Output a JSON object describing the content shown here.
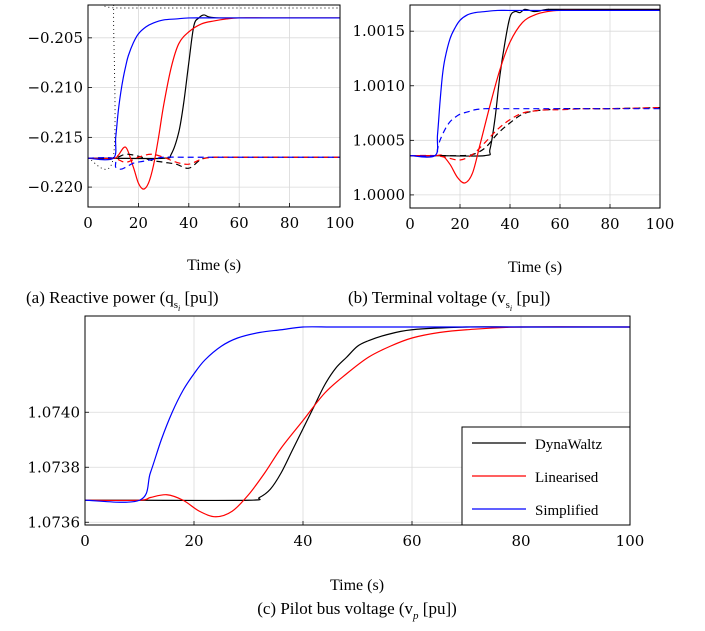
{
  "chart_data": [
    {
      "type": "line",
      "caption": "(a) Reactive power (q",
      "caption_sub": "s",
      "caption_subsub": "i",
      "caption_end": " [pu])",
      "xlabel": "Time (s)",
      "xlim": [
        0,
        100
      ],
      "ylim": [
        -0.222,
        -0.2017
      ],
      "xticks": [
        0,
        20,
        40,
        60,
        80,
        100
      ],
      "yticks": [
        -0.205,
        -0.21,
        -0.215,
        -0.22
      ],
      "ytick_labels": [
        "−0.205",
        "−0.210",
        "−0.215",
        "−0.220"
      ],
      "series": [
        {
          "color": "#000000",
          "dash": "solid",
          "x": [
            0,
            10,
            30,
            33,
            36,
            38,
            40,
            42,
            44,
            46,
            48,
            52,
            60,
            100
          ],
          "values": [
            -0.2171,
            -0.2171,
            -0.2171,
            -0.2167,
            -0.2145,
            -0.2115,
            -0.2075,
            -0.2038,
            -0.203,
            -0.2027,
            -0.2029,
            -0.203,
            -0.203,
            -0.203
          ]
        },
        {
          "color": "#ff0000",
          "dash": "solid",
          "x": [
            0,
            10,
            12,
            15,
            18,
            20,
            22,
            24,
            26,
            28,
            30,
            33,
            36,
            40,
            45,
            50,
            55,
            60,
            70,
            80,
            100
          ],
          "values": [
            -0.2171,
            -0.2171,
            -0.2168,
            -0.216,
            -0.218,
            -0.2196,
            -0.2202,
            -0.2196,
            -0.2178,
            -0.215,
            -0.2118,
            -0.208,
            -0.2056,
            -0.2044,
            -0.2036,
            -0.2033,
            -0.2031,
            -0.203,
            -0.203,
            -0.203,
            -0.203
          ]
        },
        {
          "color": "#0000ff",
          "dash": "solid",
          "x": [
            0,
            10,
            11,
            12,
            13,
            14,
            15,
            16,
            18,
            20,
            23,
            26,
            30,
            35,
            40,
            50,
            60,
            100
          ],
          "values": [
            -0.2171,
            -0.2171,
            -0.215,
            -0.2124,
            -0.2105,
            -0.209,
            -0.2078,
            -0.2068,
            -0.2055,
            -0.2046,
            -0.2039,
            -0.2035,
            -0.2032,
            -0.2031,
            -0.203,
            -0.203,
            -0.203,
            -0.203
          ]
        },
        {
          "color": "#000000",
          "dash": "dotted",
          "x": [
            0,
            10,
            10.2,
            12,
            100
          ],
          "values": [
            -0.2171,
            -0.2171,
            -0.202,
            -0.202,
            -0.202
          ]
        },
        {
          "color": "#000000",
          "dash": "dashed",
          "x": [
            0,
            10,
            15,
            20,
            25,
            30,
            35,
            40,
            45,
            50,
            60,
            100
          ],
          "values": [
            -0.2171,
            -0.2171,
            -0.2167,
            -0.2169,
            -0.2173,
            -0.2175,
            -0.2177,
            -0.2181,
            -0.2172,
            -0.217,
            -0.217,
            -0.217
          ]
        },
        {
          "color": "#ff0000",
          "dash": "dashed",
          "x": [
            0,
            10,
            15,
            20,
            25,
            30,
            35,
            40,
            45,
            50,
            60,
            100
          ],
          "values": [
            -0.2171,
            -0.2171,
            -0.2175,
            -0.217,
            -0.2167,
            -0.217,
            -0.2175,
            -0.2177,
            -0.2172,
            -0.217,
            -0.217,
            -0.217
          ]
        },
        {
          "color": "#0000ff",
          "dash": "dashed",
          "x": [
            0,
            10,
            11,
            13,
            15,
            18,
            22,
            26,
            30,
            40,
            60,
            100
          ],
          "values": [
            -0.2171,
            -0.2171,
            -0.218,
            -0.2182,
            -0.218,
            -0.2176,
            -0.2174,
            -0.2172,
            -0.217,
            -0.217,
            -0.217,
            -0.217
          ]
        }
      ]
    },
    {
      "type": "line",
      "caption": "(b) Terminal voltage (v",
      "caption_sub": "s",
      "caption_subsub": "i",
      "caption_end": " [pu])",
      "xlabel": "Time (s)",
      "xlim": [
        0,
        100
      ],
      "ylim": [
        0.99988,
        1.00174
      ],
      "xticks": [
        0,
        20,
        40,
        60,
        80,
        100
      ],
      "yticks": [
        1.0015,
        1.001,
        1.0005,
        1.0
      ],
      "ytick_labels": [
        "1.0015",
        "1.0010",
        "1.0005",
        "1.0000"
      ],
      "series": [
        {
          "color": "#000000",
          "dash": "solid",
          "x": [
            0,
            10,
            30,
            32,
            34,
            36,
            38,
            40,
            42,
            44,
            46,
            50,
            55,
            60,
            100
          ],
          "values": [
            1.00036,
            1.00036,
            1.00036,
            1.00042,
            1.0007,
            1.0011,
            1.0014,
            1.00163,
            1.00168,
            1.00167,
            1.0017,
            1.00168,
            1.0017,
            1.0017,
            1.0017
          ]
        },
        {
          "color": "#ff0000",
          "dash": "solid",
          "x": [
            0,
            10,
            13,
            16,
            19,
            22,
            25,
            28,
            32,
            36,
            40,
            45,
            50,
            55,
            60,
            70,
            100
          ],
          "values": [
            1.00036,
            1.00036,
            1.00036,
            1.00028,
            1.00016,
            1.00011,
            1.0002,
            1.00046,
            1.00082,
            1.00115,
            1.0014,
            1.00158,
            1.00165,
            1.00168,
            1.00169,
            1.00169,
            1.00169
          ]
        },
        {
          "color": "#0000ff",
          "dash": "solid",
          "x": [
            0,
            10,
            11,
            12,
            13,
            14,
            16,
            18,
            20,
            23,
            26,
            30,
            35,
            40,
            50,
            60,
            100
          ],
          "values": [
            1.00036,
            1.00036,
            1.00055,
            1.00085,
            1.0011,
            1.00125,
            1.00143,
            1.00153,
            1.0016,
            1.00165,
            1.00167,
            1.00168,
            1.00169,
            1.00169,
            1.00169,
            1.00169,
            1.00169
          ]
        },
        {
          "color": "#000000",
          "dash": "dashed",
          "x": [
            0,
            10,
            20,
            25,
            30,
            35,
            40,
            45,
            50,
            55,
            60,
            70,
            80,
            100
          ],
          "values": [
            1.00036,
            1.00036,
            1.00036,
            1.00037,
            1.00043,
            1.00056,
            1.00066,
            1.00074,
            1.00077,
            1.00078,
            1.00079,
            1.00079,
            1.00079,
            1.0008
          ]
        },
        {
          "color": "#ff0000",
          "dash": "dashed",
          "x": [
            0,
            10,
            15,
            20,
            25,
            30,
            35,
            40,
            45,
            50,
            55,
            60,
            70,
            80,
            100
          ],
          "values": [
            1.00036,
            1.00036,
            1.00034,
            1.00032,
            1.00037,
            1.00048,
            1.0006,
            1.00069,
            1.00075,
            1.00077,
            1.00078,
            1.00078,
            1.00079,
            1.00079,
            1.0008
          ]
        },
        {
          "color": "#0000ff",
          "dash": "dashed",
          "x": [
            0,
            10,
            11,
            12,
            14,
            16,
            18,
            20,
            23,
            26,
            30,
            35,
            40,
            60,
            100
          ],
          "values": [
            1.00036,
            1.00036,
            1.00042,
            1.0005,
            1.0006,
            1.00067,
            1.00071,
            1.00074,
            1.00076,
            1.00078,
            1.00079,
            1.00079,
            1.00079,
            1.00079,
            1.00079
          ]
        }
      ]
    },
    {
      "type": "line",
      "caption": "(c) Pilot bus voltage (v",
      "caption_sub": "p",
      "caption_end": " [pu])",
      "xlabel": "Time (s)",
      "xlim": [
        0,
        100
      ],
      "ylim": [
        1.07359,
        1.07435
      ],
      "xticks": [
        0,
        20,
        40,
        60,
        80,
        100
      ],
      "yticks": [
        1.074,
        1.0738,
        1.0736
      ],
      "ytick_labels": [
        "1.0740",
        "1.0738",
        "1.0736"
      ],
      "legend_position": "bottom-right",
      "series": [
        {
          "name": "DynaWaltz",
          "color": "#000000",
          "dash": "solid",
          "x": [
            0,
            10,
            30,
            32,
            34,
            36,
            38,
            40,
            42,
            44,
            46,
            48,
            50,
            52,
            55,
            60,
            70,
            80,
            100
          ],
          "values": [
            1.07368,
            1.07368,
            1.07368,
            1.07369,
            1.07372,
            1.07378,
            1.07386,
            1.07394,
            1.07402,
            1.0741,
            1.07416,
            1.0742,
            1.07424,
            1.07426,
            1.07428,
            1.0743,
            1.07431,
            1.07431,
            1.07431
          ]
        },
        {
          "name": "Linearised",
          "color": "#ff0000",
          "dash": "solid",
          "x": [
            0,
            10,
            12,
            15,
            18,
            21,
            24,
            27,
            30,
            33,
            36,
            40,
            44,
            48,
            52,
            56,
            60,
            65,
            70,
            80,
            100
          ],
          "values": [
            1.07368,
            1.07368,
            1.07369,
            1.0737,
            1.07368,
            1.07364,
            1.07362,
            1.07364,
            1.0737,
            1.07378,
            1.07387,
            1.07397,
            1.07407,
            1.07414,
            1.0742,
            1.07424,
            1.07427,
            1.07429,
            1.0743,
            1.07431,
            1.07431
          ]
        },
        {
          "name": "Simplified",
          "color": "#0000ff",
          "dash": "solid",
          "x": [
            0,
            10,
            12,
            14,
            16,
            18,
            20,
            22,
            25,
            28,
            32,
            36,
            40,
            45,
            50,
            60,
            100
          ],
          "values": [
            1.07368,
            1.07368,
            1.07378,
            1.0739,
            1.074,
            1.07408,
            1.07414,
            1.07419,
            1.07424,
            1.07427,
            1.07429,
            1.0743,
            1.07431,
            1.07431,
            1.07431,
            1.07431,
            1.07431
          ]
        }
      ]
    }
  ]
}
